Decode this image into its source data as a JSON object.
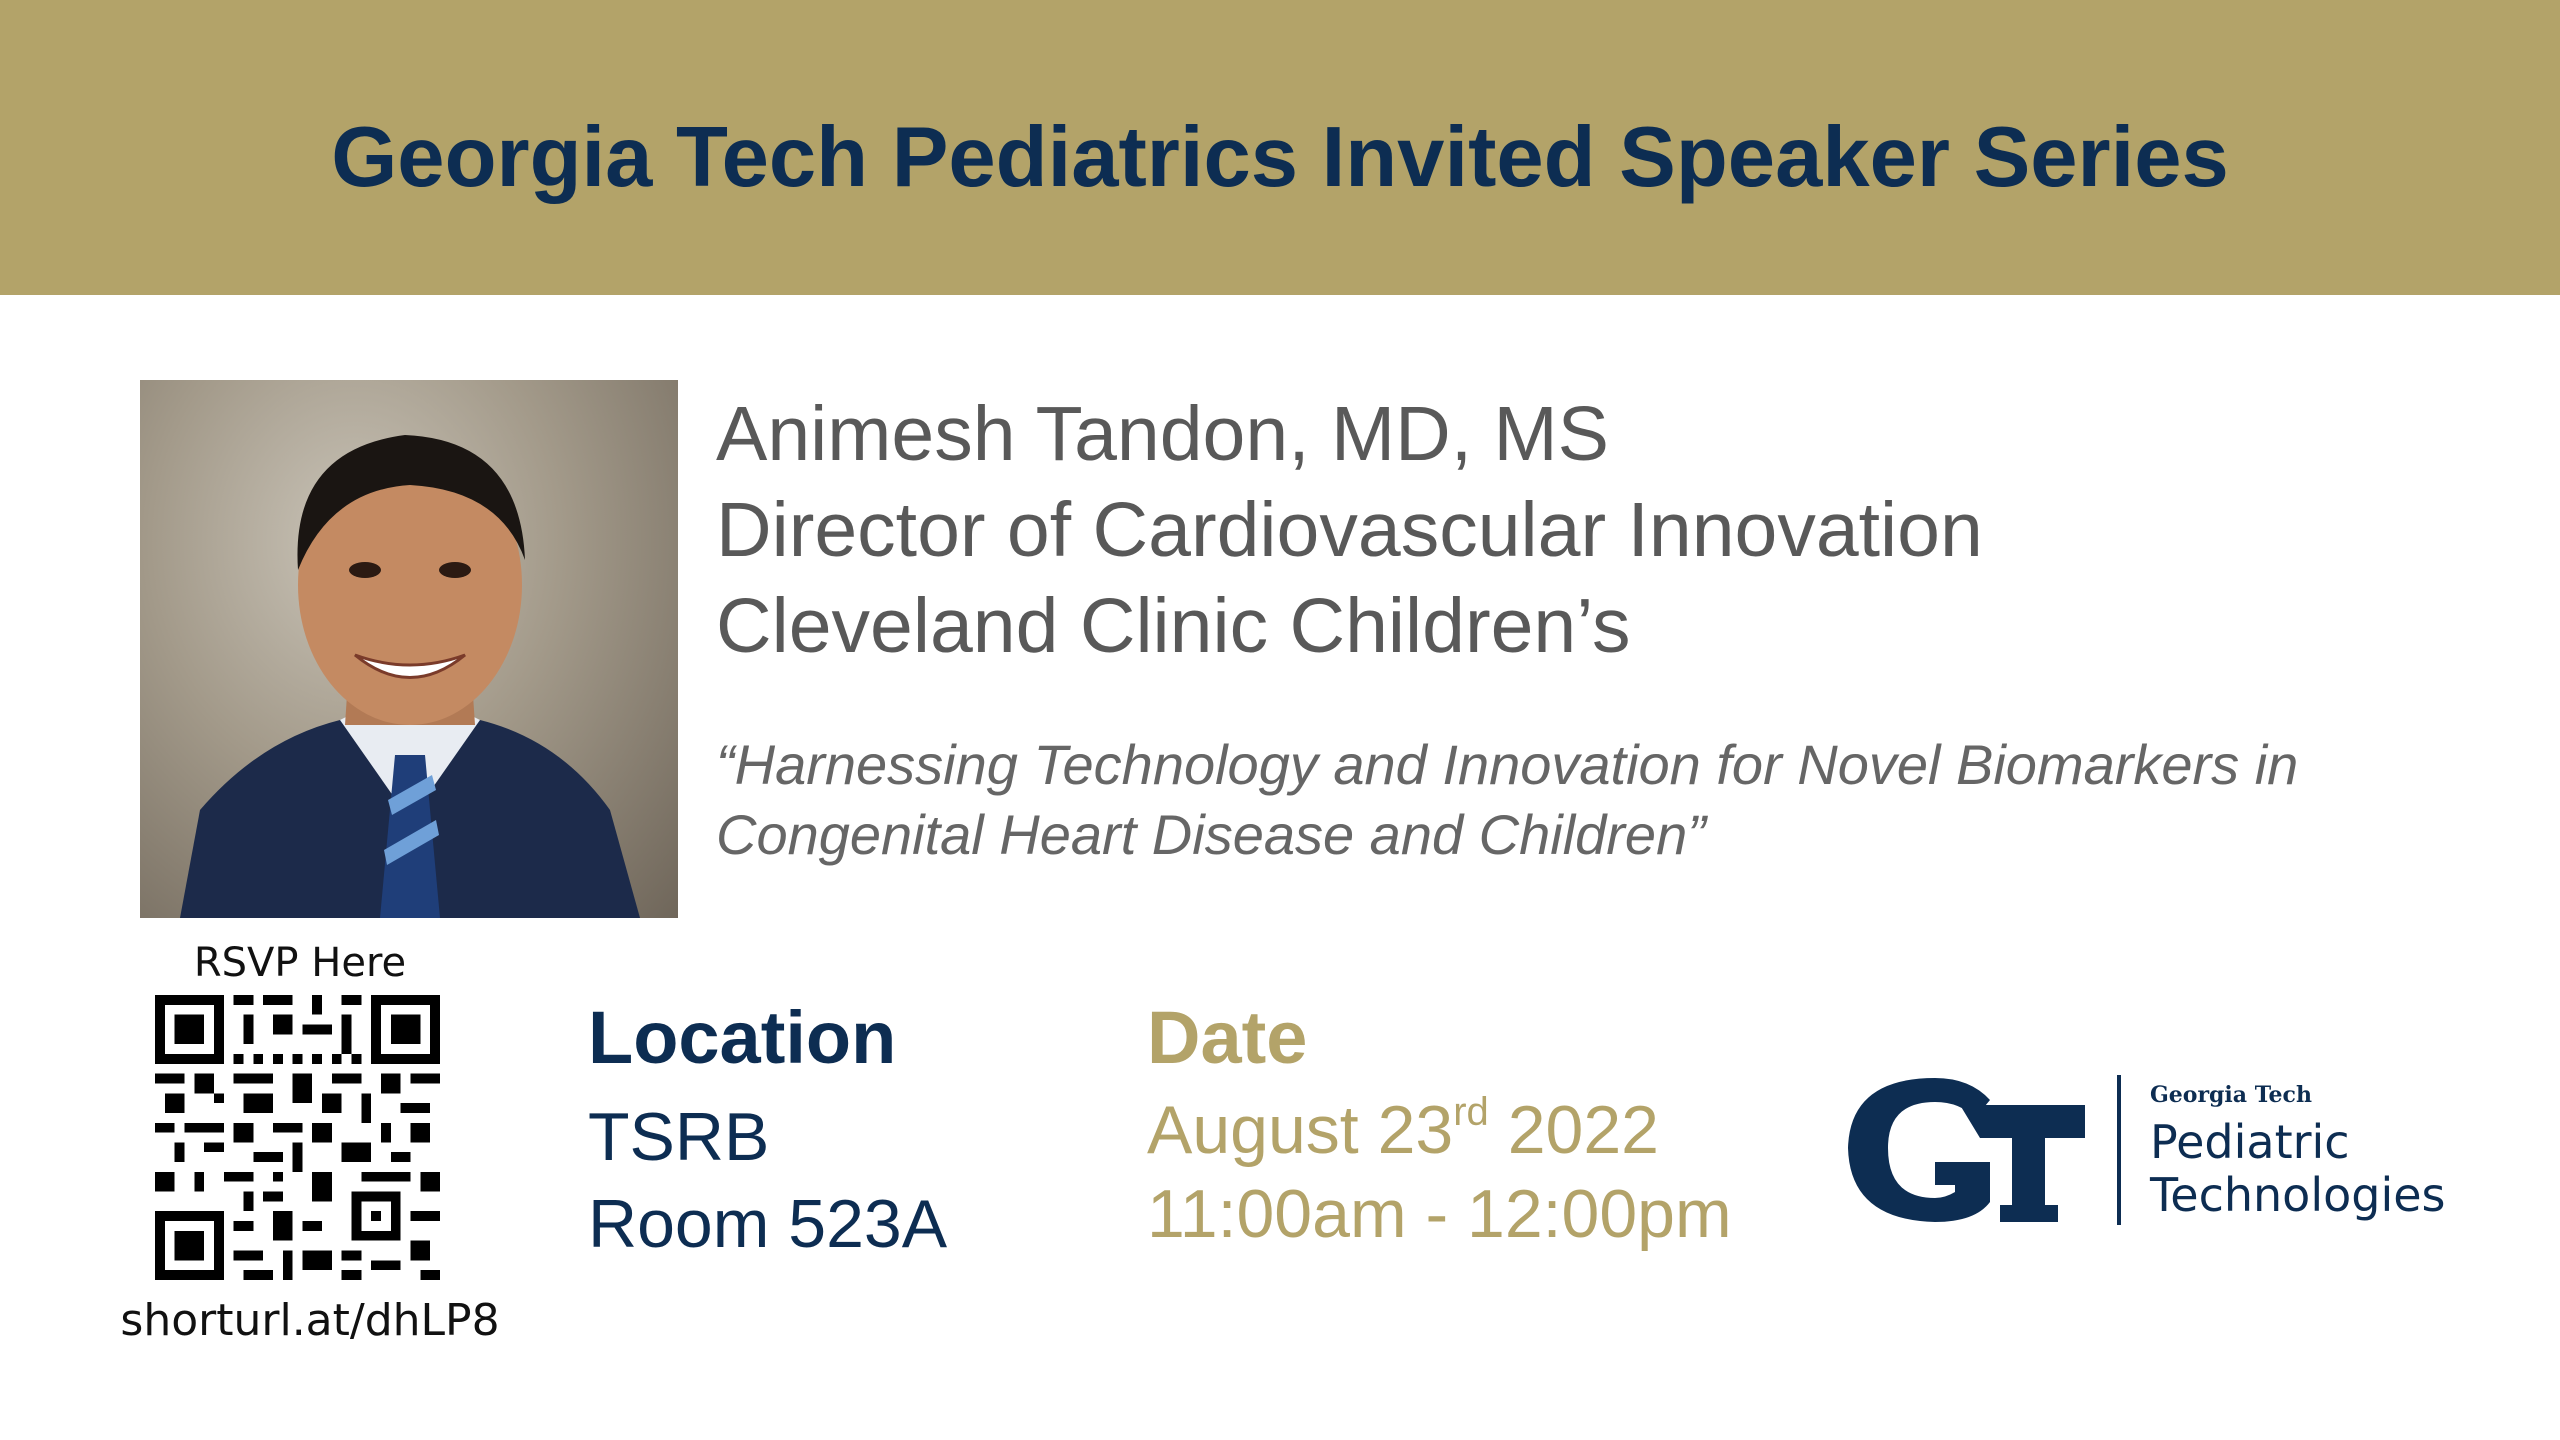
{
  "banner": {
    "title": "Georgia Tech Pediatrics Invited Speaker Series",
    "color": "#b3a369"
  },
  "speaker": {
    "name": "Animesh Tandon, MD, MS",
    "title": "Director of Cardiovascular Innovation",
    "affiliation": "Cleveland Clinic Children’s"
  },
  "talk": {
    "line1": "“Harnessing Technology and Innovation for Novel Biomarkers in",
    "line2": "Congenital Heart Disease and Children”"
  },
  "rsvp": {
    "label": "RSVP Here",
    "url": "shorturl.at/dhLP8"
  },
  "location": {
    "heading": "Location",
    "line1": "TSRB",
    "line2": "Room 523A"
  },
  "date": {
    "heading": "Date",
    "month_day": "August 23",
    "suffix": "rd",
    "year": " 2022",
    "time": "11:00am - 12:00pm"
  },
  "logo": {
    "small": "Georgia Tech",
    "line1": "Pediatric",
    "line2": "Technologies"
  },
  "colors": {
    "navy": "#0d2d52",
    "gold": "#b3a369",
    "gray": "#595959"
  }
}
